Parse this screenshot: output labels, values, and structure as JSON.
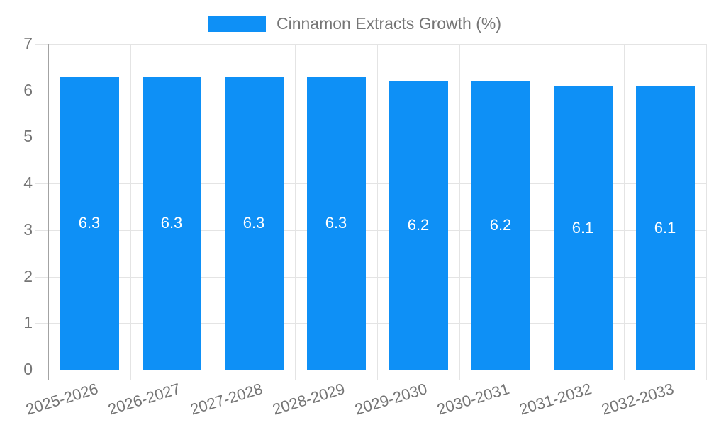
{
  "legend": {
    "label": "Cinnamon Extracts Growth (%)"
  },
  "colors": {
    "bar": "#0e90f6",
    "grid": "#e4e4e4",
    "axis": "#a3a3a3",
    "tick_text": "#757575",
    "value_label_text": "#ffffff",
    "background": "#ffffff"
  },
  "chart_data": {
    "type": "bar",
    "title": "Cinnamon Extracts Growth (%)",
    "categories": [
      "2025-2026",
      "2026-2027",
      "2027-2028",
      "2028-2029",
      "2029-2030",
      "2030-2031",
      "2031-2032",
      "2032-2033"
    ],
    "series": [
      {
        "name": "Cinnamon Extracts Growth (%)",
        "values": [
          6.3,
          6.3,
          6.3,
          6.3,
          6.2,
          6.2,
          6.1,
          6.1
        ]
      }
    ],
    "bar_labels": [
      "6.3",
      "6.3",
      "6.3",
      "6.3",
      "6.2",
      "6.2",
      "6.1",
      "6.1"
    ],
    "xlabel": "",
    "ylabel": "",
    "ylim": [
      0,
      7
    ],
    "ytick_step": 1,
    "ytick_labels": [
      "0",
      "1",
      "2",
      "3",
      "4",
      "5",
      "6",
      "7"
    ],
    "grid": true,
    "legend_position": "top",
    "value_labels_inside_bars": true
  }
}
